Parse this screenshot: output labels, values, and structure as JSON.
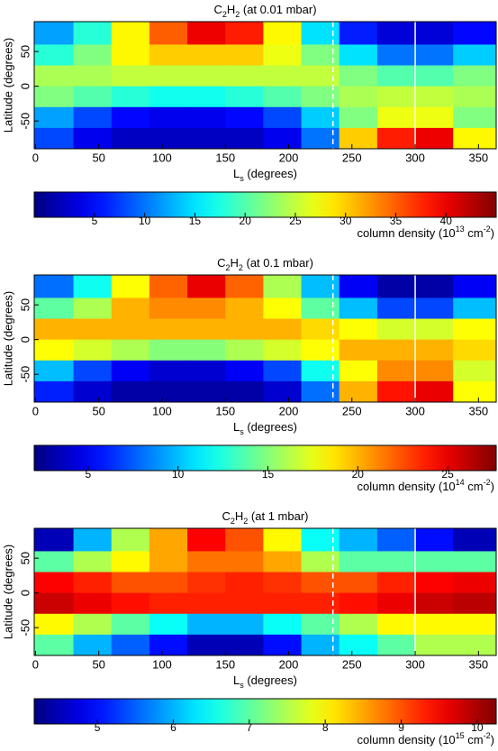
{
  "chart_data": [
    {
      "type": "heatmap",
      "title_parts": [
        "C",
        "2",
        "H",
        "2",
        " (at 0.01 mbar)"
      ],
      "x_label_parts": [
        "L",
        "s",
        " (degrees)"
      ],
      "y_label": "Latitude (degrees)",
      "x": [
        15,
        45,
        75,
        105,
        135,
        165,
        195,
        225,
        255,
        285,
        315,
        345
      ],
      "y": [
        75,
        45,
        15,
        -15,
        -45,
        -75
      ],
      "z": [
        [
          12,
          18,
          28,
          35,
          40,
          38,
          28,
          15,
          6,
          3,
          3,
          5
        ],
        [
          18,
          22,
          28,
          30,
          30,
          30,
          27,
          22,
          15,
          10,
          10,
          14
        ],
        [
          24,
          24,
          25,
          25,
          25,
          25,
          25,
          25,
          22,
          20,
          20,
          22
        ],
        [
          22,
          20,
          18,
          17,
          17,
          18,
          20,
          22,
          24,
          25,
          25,
          24
        ],
        [
          12,
          8,
          5,
          4,
          4,
          5,
          8,
          14,
          22,
          27,
          27,
          22
        ],
        [
          8,
          4,
          2,
          2,
          2,
          2,
          4,
          10,
          30,
          38,
          40,
          28
        ]
      ],
      "xlim": [
        -1,
        364
      ],
      "ylim": [
        -90,
        93
      ],
      "xticks": [
        0,
        50,
        100,
        150,
        200,
        250,
        300,
        350
      ],
      "yticks": [
        -50,
        0,
        50
      ],
      "vlines": [
        {
          "value": 235,
          "style": "dashed",
          "color": "#ffffff"
        },
        {
          "value": 300,
          "style": "solid",
          "color": "#ffffff"
        }
      ],
      "colormap": "jet",
      "colorbar": {
        "lim": [
          -1,
          45
        ],
        "ticks": [
          5,
          10,
          15,
          20,
          25,
          30,
          35,
          40
        ],
        "label_parts": [
          "column density (10",
          "13",
          " cm",
          "-2",
          ")"
        ]
      }
    },
    {
      "type": "heatmap",
      "title_parts": [
        "C",
        "2",
        "H",
        "2",
        " (at 0.1 mbar)"
      ],
      "x_label_parts": [
        "L",
        "s",
        " (degrees)"
      ],
      "y_label": "Latitude (degrees)",
      "x": [
        15,
        45,
        75,
        105,
        135,
        165,
        195,
        225,
        255,
        285,
        315,
        345
      ],
      "y": [
        75,
        45,
        15,
        -15,
        -45,
        -75
      ],
      "z": [
        [
          8,
          12,
          18,
          22,
          25,
          22,
          16,
          10,
          5,
          3,
          3,
          5
        ],
        [
          14,
          16,
          20,
          21,
          21,
          20,
          18,
          14,
          10,
          7,
          7,
          10
        ],
        [
          20,
          20,
          20,
          20,
          20,
          20,
          20,
          19,
          18,
          17,
          17,
          18
        ],
        [
          18,
          17,
          16,
          15,
          15,
          16,
          17,
          18,
          20,
          20,
          20,
          19
        ],
        [
          10,
          7,
          5,
          4,
          4,
          5,
          7,
          12,
          18,
          21,
          21,
          17
        ],
        [
          6,
          4,
          3,
          3,
          3,
          3,
          4,
          8,
          20,
          24,
          25,
          18
        ]
      ],
      "xlim": [
        -1,
        364
      ],
      "ylim": [
        -90,
        93
      ],
      "xticks": [
        0,
        50,
        100,
        150,
        200,
        250,
        300,
        350
      ],
      "yticks": [
        -50,
        0,
        50
      ],
      "vlines": [
        {
          "value": 235,
          "style": "dashed",
          "color": "#ffffff"
        },
        {
          "value": 300,
          "style": "solid",
          "color": "#ffffff"
        }
      ],
      "colormap": "jet",
      "colorbar": {
        "lim": [
          2,
          27.7
        ],
        "ticks": [
          5,
          10,
          15,
          20,
          25
        ],
        "label_parts": [
          "column density (10",
          "14",
          " cm",
          "-2",
          ")"
        ]
      }
    },
    {
      "type": "heatmap",
      "title_parts": [
        "C",
        "2",
        "H",
        "2",
        " (at 1 mbar)"
      ],
      "x_label_parts": [
        "L",
        "s",
        " (degrees)"
      ],
      "y_label": "Latitude (degrees)",
      "x": [
        15,
        45,
        75,
        105,
        135,
        165,
        195,
        225,
        255,
        285,
        315,
        345
      ],
      "y": [
        75,
        45,
        15,
        -15,
        -45,
        -75
      ],
      "z": [
        [
          4.5,
          6,
          7.5,
          8.5,
          9.5,
          9,
          8,
          6.5,
          6,
          5.5,
          5,
          4.5
        ],
        [
          7,
          7.5,
          8,
          8.5,
          8.8,
          8.8,
          8.5,
          7.5,
          7,
          7,
          7,
          7
        ],
        [
          9.5,
          9.3,
          9,
          9,
          9.2,
          9.3,
          9.2,
          9,
          9,
          9.3,
          9.5,
          9.6
        ],
        [
          9.8,
          9.6,
          9.4,
          9.3,
          9.3,
          9.3,
          9.3,
          9.3,
          9.4,
          9.6,
          9.8,
          9.9
        ],
        [
          8,
          7.5,
          7,
          6.5,
          6,
          6,
          6.5,
          7,
          7.5,
          8,
          8,
          8
        ],
        [
          7,
          6,
          5.5,
          5,
          4.5,
          4.5,
          5,
          6,
          6.5,
          7,
          7.5,
          7.5
        ]
      ],
      "xlim": [
        -1,
        364
      ],
      "ylim": [
        -90,
        93
      ],
      "xticks": [
        0,
        50,
        100,
        150,
        200,
        250,
        300,
        350
      ],
      "yticks": [
        -50,
        0,
        50
      ],
      "vlines": [
        {
          "value": 235,
          "style": "dashed",
          "color": "#ffffff"
        },
        {
          "value": 300,
          "style": "solid",
          "color": "#ffffff"
        }
      ],
      "colormap": "jet",
      "colorbar": {
        "lim": [
          4.17,
          10.25
        ],
        "ticks": [
          5,
          6,
          7,
          8,
          9,
          10
        ],
        "label_parts": [
          "column density (10",
          "15",
          " cm",
          "-2",
          ")"
        ]
      }
    }
  ]
}
